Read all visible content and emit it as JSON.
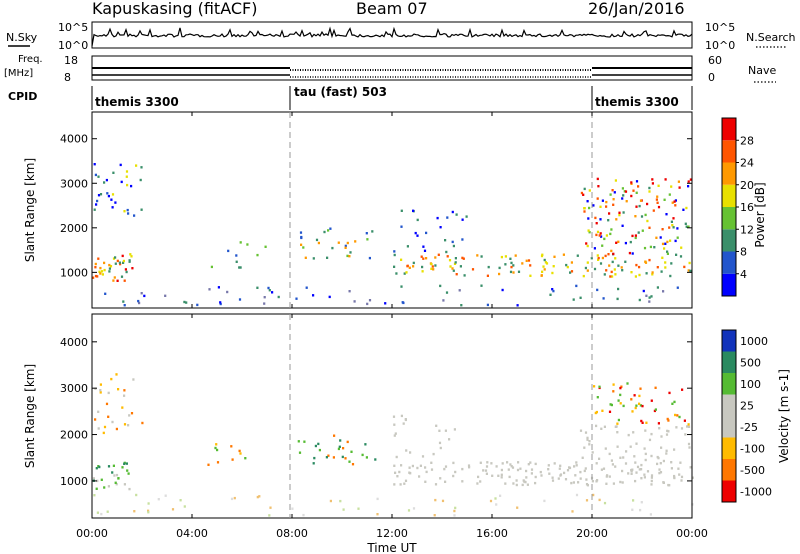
{
  "header": {
    "station": "Kapuskasing (fitACF)",
    "beam": "Beam 07",
    "date": "26/Jan/2016"
  },
  "strip_labels": {
    "nsky": "N.Sky",
    "freq": "Freq.",
    "mhz": "[MHz]",
    "cpid": "CPID",
    "nsearch": "N.Search",
    "nave": "Nave",
    "nsky_tick_hi": "10^5",
    "nsky_tick_lo": "10^0",
    "freq_tick_hi": "18",
    "freq_tick_lo": "8",
    "nave_tick_hi": "60",
    "nave_tick_lo": "0"
  },
  "cpid_segments": [
    {
      "label": "themis 3300",
      "start_hour": 0,
      "end_hour": 8
    },
    {
      "label": "tau (fast) 503",
      "start_hour": 8,
      "end_hour": 20
    },
    {
      "label": "themis 3300",
      "start_hour": 20,
      "end_hour": 24
    }
  ],
  "colors": {
    "power_scale": [
      "#0000ff",
      "#2255cc",
      "#3a8f6a",
      "#66c233",
      "#e8e000",
      "#ff9900",
      "#ff5500",
      "#ee0000"
    ],
    "velocity_scale": [
      "#ee0000",
      "#ff7700",
      "#ffbb00",
      "#c8c8c0",
      "#c8c8c0",
      "#55bb33",
      "#2a8a60",
      "#1133bb"
    ],
    "ground_scatter": "#c8c8c0"
  },
  "chart_data": [
    {
      "type": "heatmap",
      "panel": "power",
      "ylabel": "Slant Range [km]",
      "ylim": [
        200,
        4600
      ],
      "xlim": [
        0,
        24
      ],
      "y_ticks": [
        1000,
        2000,
        3000,
        4000
      ],
      "colorbar_label": "Power [dB]",
      "colorbar_ticks": [
        4,
        8,
        12,
        16,
        20,
        24,
        28
      ],
      "colorbar_range": [
        0,
        32
      ]
    },
    {
      "type": "heatmap",
      "panel": "velocity",
      "ylabel": "Slant Range [km]",
      "ylim": [
        200,
        4600
      ],
      "xlim": [
        0,
        24
      ],
      "y_ticks": [
        1000,
        2000,
        3000,
        4000
      ],
      "colorbar_label": "Velocity [m s-1]",
      "colorbar_ticks": [
        "1000",
        "500",
        "100",
        "25",
        "-25",
        "-100",
        "-500",
        "-1000"
      ]
    }
  ],
  "x_axis": {
    "label": "Time UT",
    "ticks": [
      "00:00",
      "04:00",
      "08:00",
      "12:00",
      "16:00",
      "20:00",
      "00:00"
    ]
  }
}
